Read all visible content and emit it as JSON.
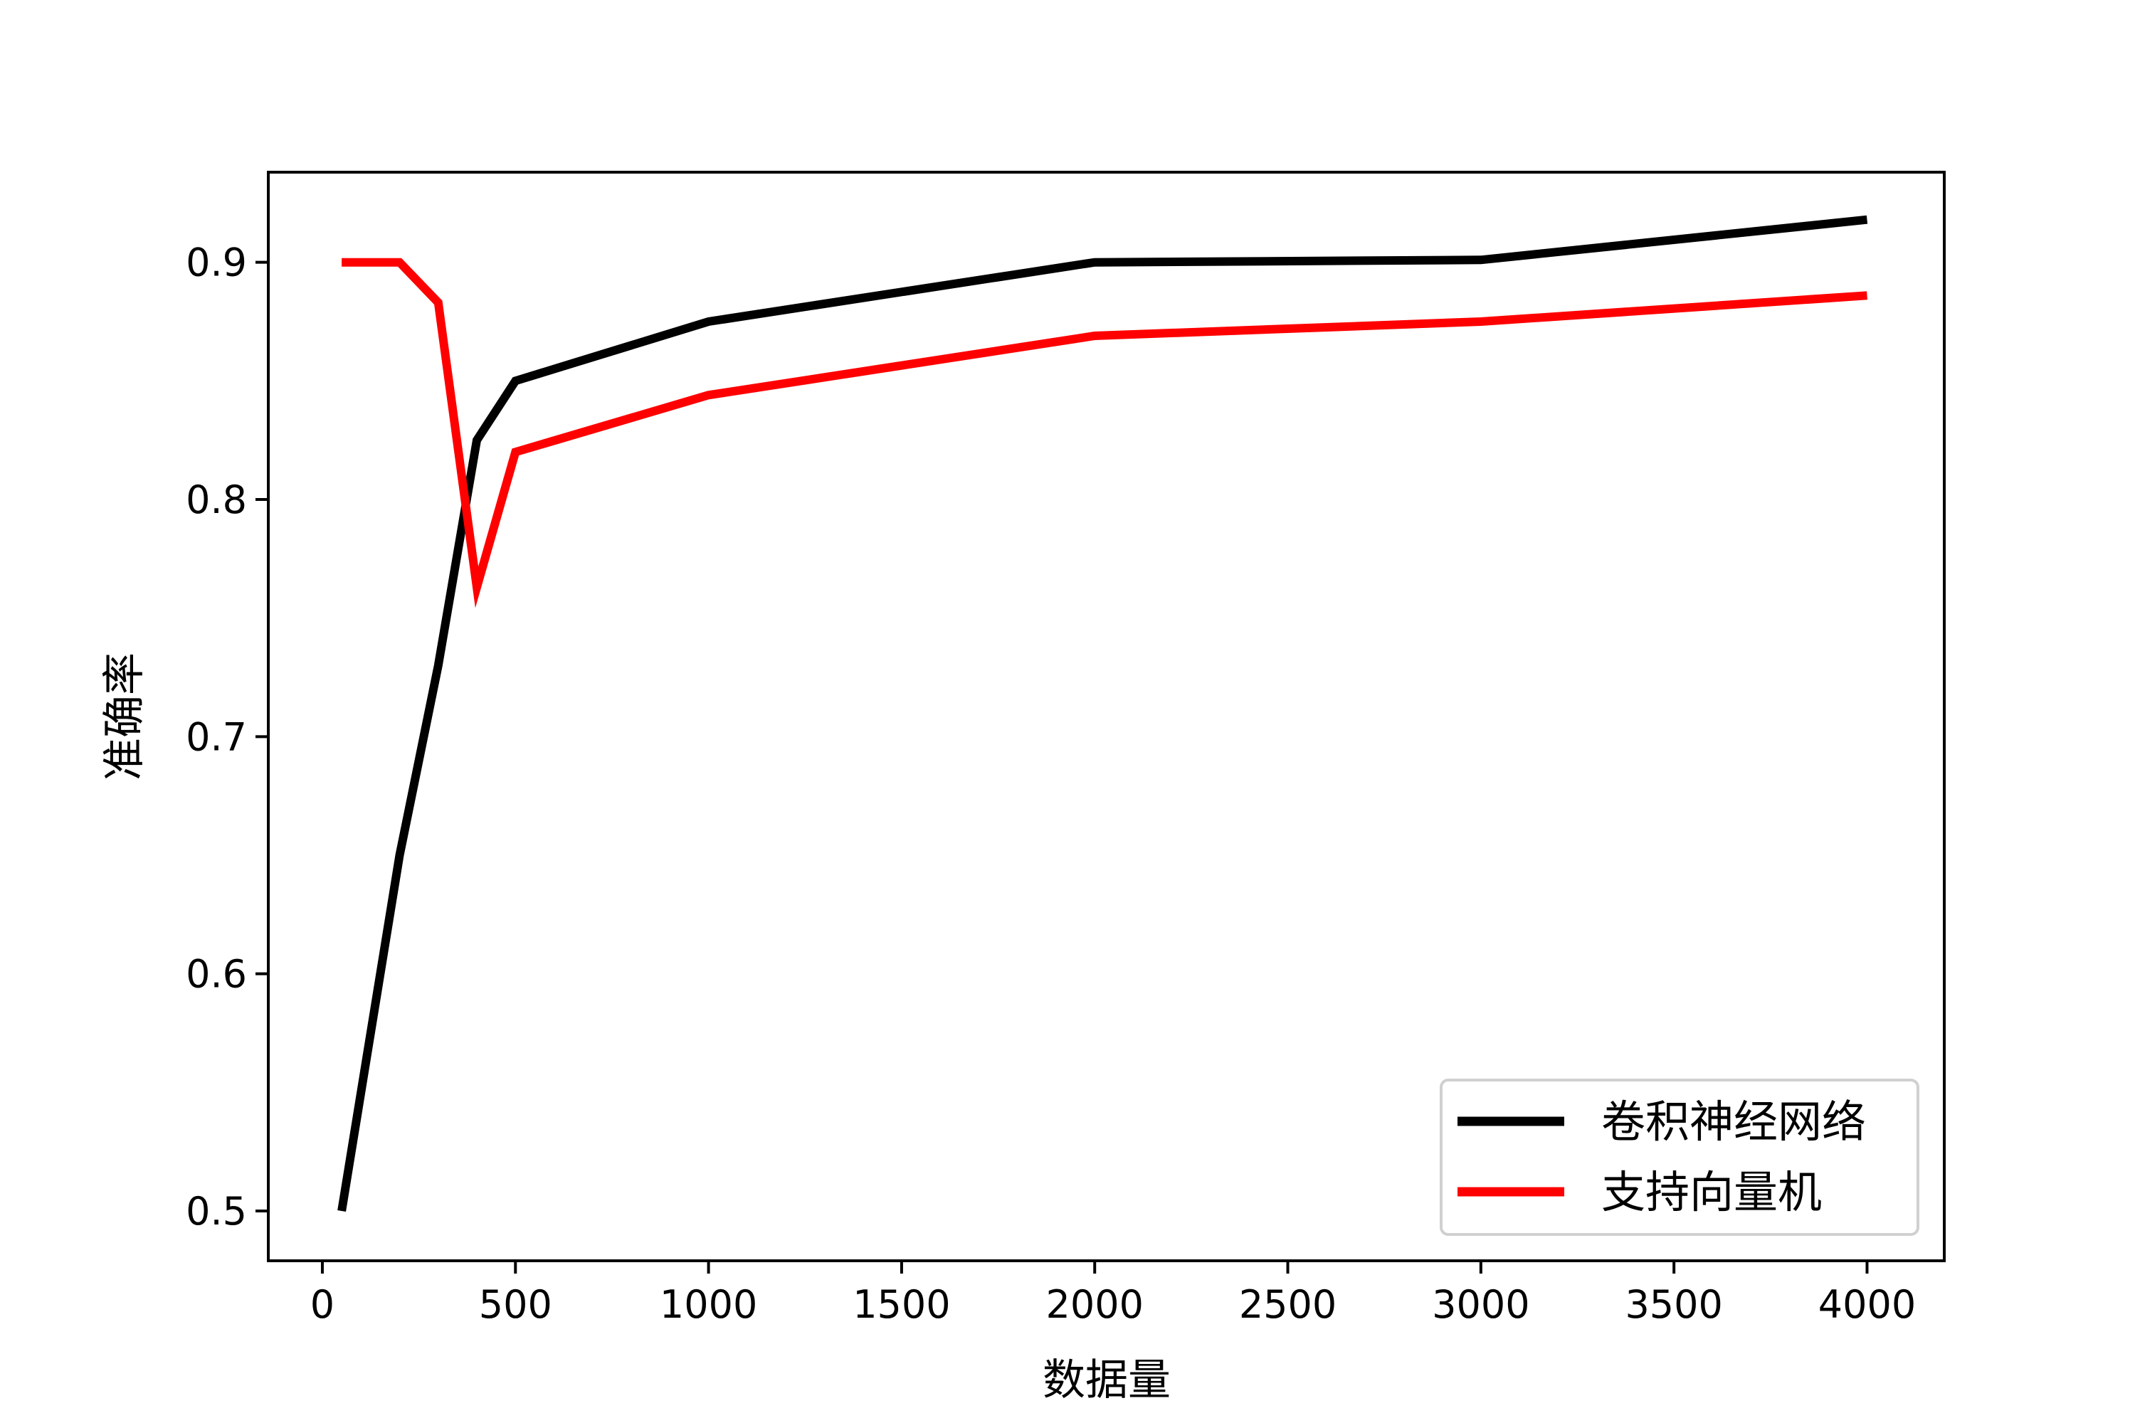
{
  "chart_data": {
    "type": "line",
    "title": "",
    "xlabel": "数据量",
    "ylabel": "准确率",
    "xlim": [
      -140,
      4200
    ],
    "ylim": [
      0.479,
      0.938
    ],
    "xticks": [
      0,
      500,
      1000,
      1500,
      2000,
      2500,
      3000,
      3500,
      4000
    ],
    "yticks": [
      0.5,
      0.6,
      0.7,
      0.8,
      0.9
    ],
    "ytick_labels": [
      "0.5",
      "0.6",
      "0.7",
      "0.8",
      "0.9"
    ],
    "grid": false,
    "legend_position": "lower-right",
    "series": [
      {
        "name": "卷积神经网络",
        "color": "#000000",
        "x": [
          50,
          200,
          300,
          400,
          500,
          1000,
          2000,
          3000,
          4000
        ],
        "y": [
          0.5,
          0.65,
          0.73,
          0.825,
          0.85,
          0.875,
          0.9,
          0.901,
          0.918
        ]
      },
      {
        "name": "支持向量机",
        "color": "#ff0000",
        "x": [
          50,
          200,
          300,
          400,
          500,
          1000,
          2000,
          3000,
          4000
        ],
        "y": [
          0.9,
          0.9,
          0.883,
          0.763,
          0.82,
          0.844,
          0.869,
          0.875,
          0.886
        ]
      }
    ]
  }
}
